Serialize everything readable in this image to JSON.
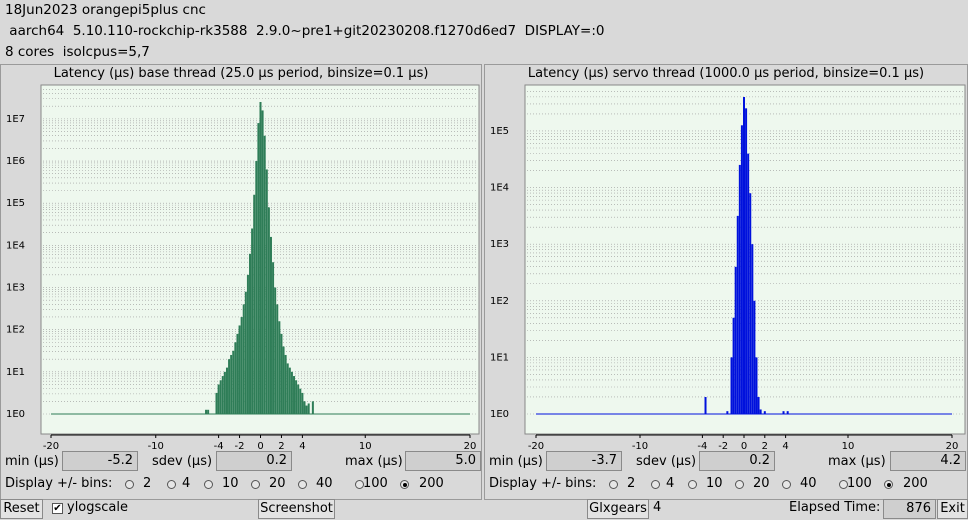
{
  "header": {
    "line1": "18Jun2023 orangepi5plus cnc",
    "line2": " aarch64  5.10.110-rockchip-rk3588  2.9.0~pre1+git20230208.f1270d6ed7  DISPLAY=:0",
    "line3": "8 cores  isolcpus=5,7"
  },
  "colors": {
    "base": "#2e7d57",
    "servo": "#0011dd",
    "plot_bg": "#eef8ee"
  },
  "panels": [
    {
      "title": "Latency (µs) base thread (25.0 µs period, binsize=0.1 µs)",
      "min_label": "min (µs)",
      "min_value": "-5.2",
      "sdev_label": "sdev (µs)",
      "sdev_value": "0.2",
      "max_label": "max (µs)",
      "max_value": "5.0",
      "bins_label": "Display +/- bins:",
      "bin_options": [
        "2",
        "4",
        "10",
        "20",
        "40",
        "100",
        "200"
      ],
      "bin_selected": "200"
    },
    {
      "title": "Latency (µs) servo thread (1000.0 µs period, binsize=0.1 µs)",
      "min_label": "min (µs)",
      "min_value": "-3.7",
      "sdev_label": "sdev (µs)",
      "sdev_value": "0.2",
      "max_label": "max (µs)",
      "max_value": "4.2",
      "bins_label": "Display +/- bins:",
      "bin_options": [
        "2",
        "4",
        "10",
        "20",
        "40",
        "100",
        "200"
      ],
      "bin_selected": "200"
    }
  ],
  "footer": {
    "reset_label": "Reset",
    "ylog_label": "ylogscale",
    "ylog_checked": true,
    "screenshot_label": "Screenshot",
    "glxgears_label": "Glxgears",
    "glxgears_count": "4",
    "elapsed_label": "Elapsed Time:",
    "elapsed_value": "876",
    "exit_label": "Exit"
  },
  "chart_data": [
    {
      "type": "bar",
      "title": "Latency (µs) base thread (25.0 µs period, binsize=0.1 µs)",
      "log_y": true,
      "xlim": [
        -20,
        20
      ],
      "x_ticks": [
        -20,
        -10,
        -4,
        -2,
        0,
        2,
        4,
        10,
        20
      ],
      "y_ticks": [
        "1E0",
        "1E1",
        "1E2",
        "1E3",
        "1E4",
        "1E5",
        "1E6",
        "1E7"
      ],
      "ylim_exp": [
        0,
        7.4
      ],
      "x": [
        -5.2,
        -5.0,
        -4.2,
        -4.0,
        -3.8,
        -3.6,
        -3.4,
        -3.2,
        -3.0,
        -2.8,
        -2.6,
        -2.4,
        -2.2,
        -2.0,
        -1.8,
        -1.6,
        -1.4,
        -1.2,
        -1.0,
        -0.8,
        -0.6,
        -0.4,
        -0.2,
        0.0,
        0.2,
        0.4,
        0.6,
        0.8,
        1.0,
        1.2,
        1.4,
        1.6,
        1.8,
        2.0,
        2.2,
        2.4,
        2.6,
        2.8,
        3.0,
        3.2,
        3.4,
        3.6,
        3.8,
        4.0,
        4.2,
        4.4,
        4.6,
        5.0
      ],
      "y_exp": [
        0.1,
        0.1,
        0.5,
        0.7,
        0.8,
        0.9,
        1.0,
        1.1,
        1.3,
        1.4,
        1.5,
        1.7,
        1.9,
        2.1,
        2.3,
        2.6,
        2.9,
        3.3,
        3.8,
        4.4,
        5.2,
        6.0,
        6.9,
        7.4,
        7.2,
        6.6,
        5.8,
        4.9,
        4.2,
        3.6,
        3.0,
        2.6,
        2.2,
        1.9,
        1.6,
        1.4,
        1.2,
        1.1,
        1.0,
        0.9,
        0.8,
        0.7,
        0.6,
        0.5,
        0.3,
        0.2,
        0.25,
        0.3
      ]
    },
    {
      "type": "bar",
      "title": "Latency (µs) servo thread (1000.0 µs period, binsize=0.1 µs)",
      "log_y": true,
      "xlim": [
        -20,
        20
      ],
      "x_ticks": [
        -20,
        -10,
        -4,
        -2,
        0,
        2,
        4,
        10,
        20
      ],
      "y_ticks": [
        "1E0",
        "1E1",
        "1E2",
        "1E3",
        "1E4",
        "1E5"
      ],
      "ylim_exp": [
        0,
        5.6
      ],
      "x": [
        -3.7,
        -1.6,
        -1.2,
        -1.0,
        -0.8,
        -0.6,
        -0.4,
        -0.2,
        0.0,
        0.2,
        0.4,
        0.6,
        0.8,
        1.0,
        1.2,
        1.4,
        1.6,
        2.0,
        3.8,
        4.2
      ],
      "y_exp": [
        0.3,
        0.05,
        1.0,
        1.7,
        2.6,
        3.5,
        4.4,
        5.1,
        5.6,
        5.4,
        4.6,
        3.9,
        3.0,
        2.0,
        1.0,
        0.3,
        0.08,
        0.05,
        0.05,
        0.05
      ]
    }
  ]
}
